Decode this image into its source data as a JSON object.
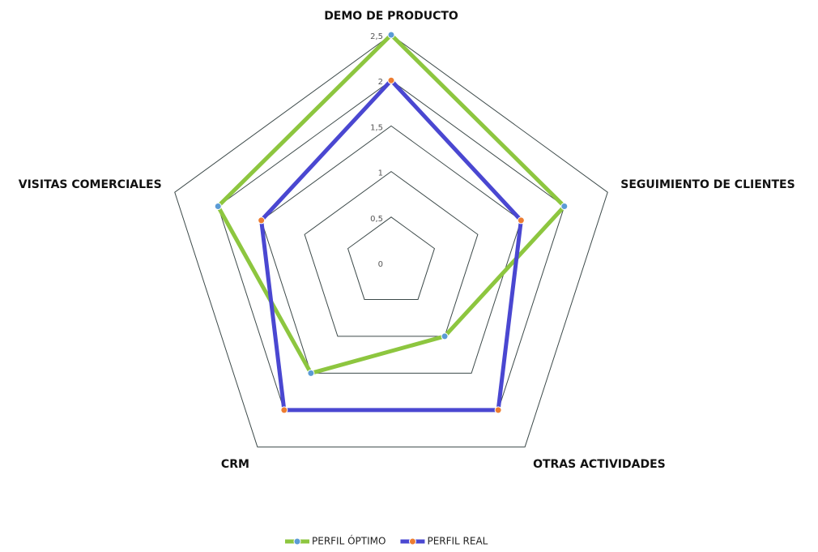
{
  "chart_data": {
    "type": "radar",
    "categories": [
      "DEMO DE PRODUCTO",
      "SEGUIMIENTO DE CLIENTES",
      "OTRAS ACTIVIDADES",
      "CRM",
      "VISITAS COMERCIALES"
    ],
    "series": [
      {
        "name": "PERFIL ÓPTIMO",
        "color": "#8dc63f",
        "marker_color": "#5b9bd5",
        "values": [
          2.5,
          2,
          1,
          1.5,
          2
        ]
      },
      {
        "name": "PERFIL REAL",
        "color": "#4a47d1",
        "marker_color": "#ed7d31",
        "values": [
          2,
          1.5,
          2,
          2,
          1.5
        ]
      }
    ],
    "ylim": [
      0,
      2.5
    ],
    "yticks": [
      0,
      {
        "value": 0.5,
        "label": "0,5"
      },
      1,
      {
        "value": 1.5,
        "label": "1,5"
      },
      2,
      {
        "value": 2.5,
        "label": "2,5"
      }
    ],
    "grid": true,
    "legend": "bottom"
  }
}
